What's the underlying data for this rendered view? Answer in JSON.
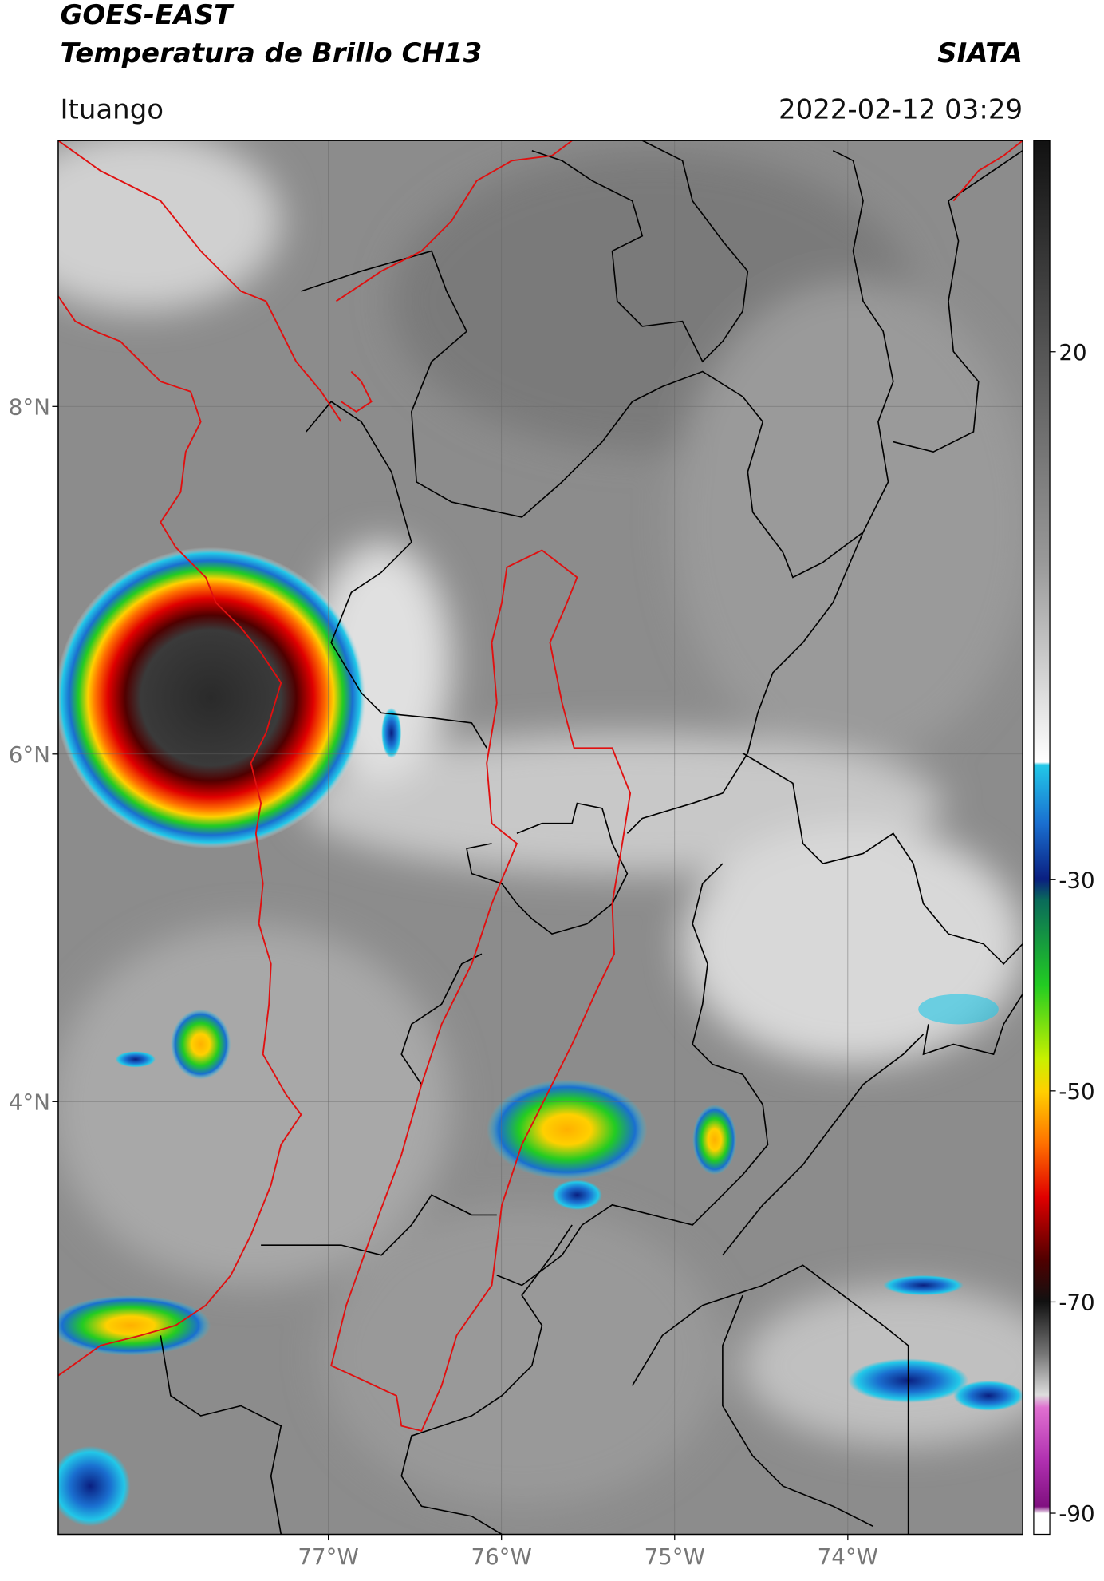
{
  "header": {
    "title": "GOES-EAST",
    "subtitle": "Temperatura de Brillo CH13",
    "brand": "SIATA",
    "location": "Ituango",
    "timestamp": "2022-02-12 03:29"
  },
  "map": {
    "lat_range": [
      1.51,
      9.53
    ],
    "lon_range": [
      -78.56,
      -72.99
    ],
    "lat_ticks": [
      {
        "value": 8,
        "label": "8°N"
      },
      {
        "value": 6,
        "label": "6°N"
      },
      {
        "value": 4,
        "label": "4°N"
      }
    ],
    "lon_ticks": [
      {
        "value": -77,
        "label": "77°W"
      },
      {
        "value": -76,
        "label": "76°W"
      },
      {
        "value": -75,
        "label": "75°W"
      },
      {
        "value": -74,
        "label": "74°W"
      }
    ]
  },
  "colorbar": {
    "range": [
      -92,
      40
    ],
    "ticks": [
      20,
      -30,
      -50,
      -70,
      -90
    ]
  }
}
